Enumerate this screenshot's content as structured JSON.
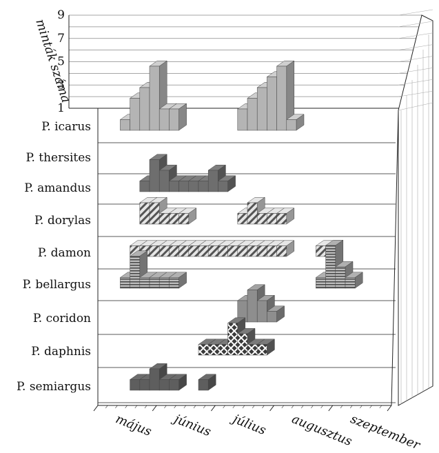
{
  "chart_data": {
    "type": "bar",
    "title": "",
    "xlabel": "",
    "ylabel": "minták száma",
    "yticks": [
      "1",
      "3",
      "5",
      "7",
      "9"
    ],
    "ylim": [
      0,
      9
    ],
    "months": [
      "május",
      "június",
      "július",
      "augusztus",
      "szeptember"
    ],
    "columns_per_month": 6,
    "series": [
      {
        "name": "P. icarus",
        "pattern": "solid-light",
        "color": "#b4b4b4",
        "values": [
          0,
          0,
          1,
          3,
          4,
          6,
          2,
          2,
          0,
          0,
          0,
          0,
          0,
          0,
          2,
          3,
          4,
          5,
          6,
          1,
          0,
          0,
          0,
          0,
          0,
          0,
          0,
          0,
          0,
          0
        ]
      },
      {
        "name": "P. thersites",
        "pattern": "diagonal",
        "color": "#cfcfcf",
        "values": [
          0,
          0,
          0,
          0,
          0,
          0,
          0,
          0,
          0,
          0,
          0,
          0,
          0,
          0,
          0,
          0,
          0,
          0,
          0,
          0,
          0,
          0,
          0,
          0,
          0,
          0,
          0,
          0,
          0,
          0
        ]
      },
      {
        "name": "P. amandus",
        "pattern": "solid-dark",
        "color": "#6e6e6e",
        "values": [
          0,
          0,
          0,
          0,
          1,
          3,
          2,
          1,
          1,
          1,
          1,
          2,
          1,
          0,
          0,
          0,
          0,
          0,
          0,
          0,
          0,
          0,
          0,
          0,
          0,
          0,
          0,
          0,
          0,
          0
        ]
      },
      {
        "name": "P. dorylas",
        "pattern": "diagonal",
        "color": "#c8c8c8",
        "values": [
          0,
          0,
          0,
          0,
          2,
          2,
          1,
          1,
          1,
          0,
          0,
          0,
          0,
          0,
          1,
          2,
          1,
          1,
          1,
          0,
          0,
          0,
          0,
          0,
          0,
          0,
          0,
          0,
          0,
          0
        ]
      },
      {
        "name": "P. damon",
        "pattern": "diagonal",
        "color": "#c8c8c8",
        "values": [
          0,
          0,
          0,
          1,
          1,
          1,
          1,
          1,
          1,
          1,
          1,
          1,
          1,
          1,
          1,
          1,
          1,
          1,
          1,
          0,
          0,
          0,
          1,
          0,
          0,
          0,
          0,
          0,
          0,
          0
        ]
      },
      {
        "name": "P. bellargus",
        "pattern": "horizontal",
        "color": "#9a9a9a",
        "values": [
          0,
          0,
          1,
          3,
          1,
          1,
          1,
          1,
          0,
          0,
          0,
          0,
          0,
          0,
          0,
          0,
          0,
          0,
          0,
          0,
          0,
          0,
          1,
          4,
          2,
          1,
          0,
          0,
          0,
          0
        ]
      },
      {
        "name": "P. coridon",
        "pattern": "solid-mid",
        "color": "#8e8e8e",
        "values": [
          0,
          0,
          0,
          0,
          0,
          0,
          0,
          0,
          0,
          0,
          0,
          0,
          0,
          0,
          2,
          3,
          2,
          1,
          0,
          0,
          0,
          0,
          0,
          0,
          0,
          0,
          0,
          0,
          0,
          0
        ]
      },
      {
        "name": "P. daphnis",
        "pattern": "crosshatch",
        "color": "#6a6a6a",
        "values": [
          0,
          0,
          0,
          0,
          0,
          0,
          0,
          0,
          0,
          0,
          1,
          1,
          1,
          3,
          2,
          1,
          1,
          0,
          0,
          0,
          0,
          0,
          0,
          0,
          0,
          0,
          0,
          0,
          0,
          0
        ]
      },
      {
        "name": "P. semiargus",
        "pattern": "solid-dark",
        "color": "#5e5e5e",
        "values": [
          0,
          0,
          0,
          1,
          1,
          2,
          1,
          1,
          0,
          0,
          1,
          0,
          0,
          0,
          0,
          0,
          0,
          0,
          0,
          0,
          0,
          0,
          0,
          0,
          0,
          0,
          0,
          0,
          0,
          0
        ]
      }
    ]
  }
}
